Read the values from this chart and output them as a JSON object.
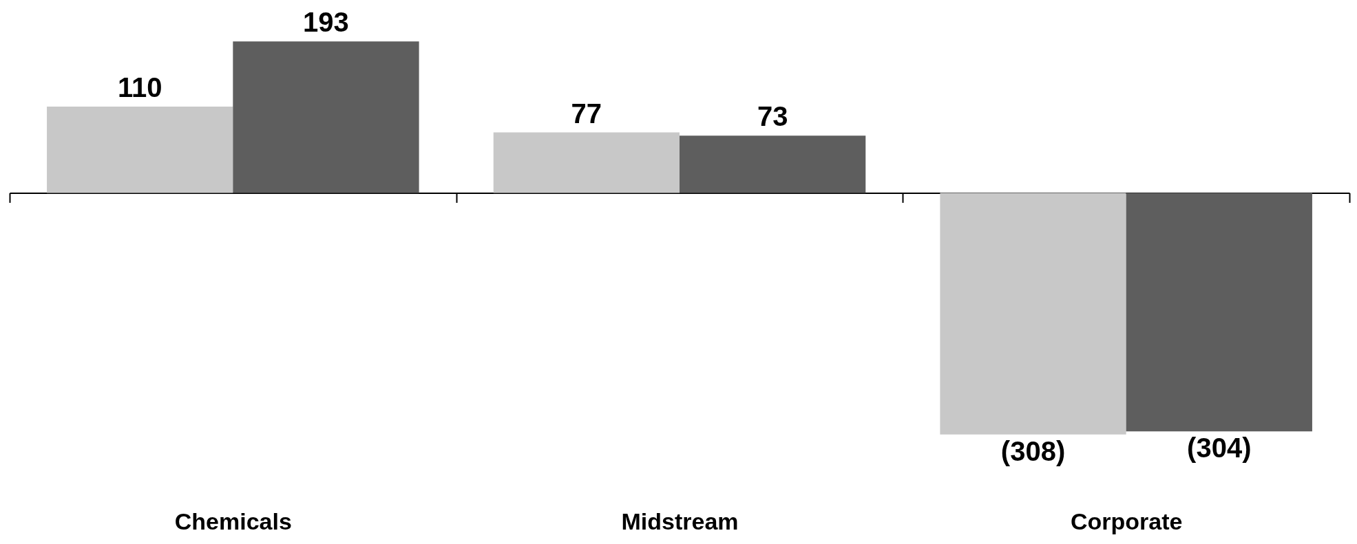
{
  "chart_data": {
    "type": "bar",
    "categories": [
      "Chemicals",
      "Midstream",
      "Corporate"
    ],
    "series": [
      {
        "color": "#c8c8c8",
        "values": [
          110,
          77,
          -308
        ],
        "value_labels": [
          "110",
          "77",
          "(308)"
        ]
      },
      {
        "color": "#5e5e5e",
        "values": [
          193,
          73,
          -304
        ],
        "value_labels": [
          "193",
          "73",
          "(304)"
        ]
      }
    ]
  }
}
